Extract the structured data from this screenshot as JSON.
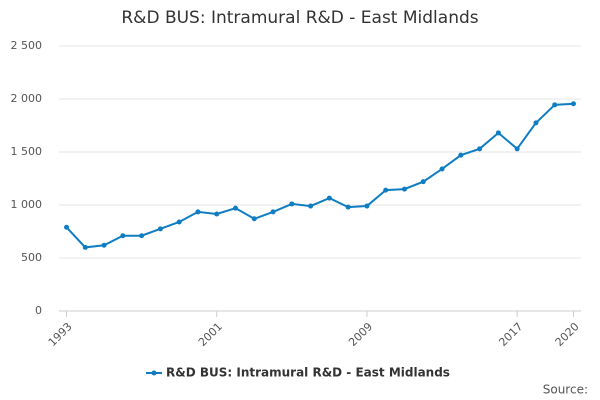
{
  "chart_data": {
    "type": "line",
    "title": "R&D BUS: Intramural R&D - East Midlands",
    "x": [
      1993,
      1994,
      1995,
      1996,
      1997,
      1998,
      1999,
      2000,
      2001,
      2002,
      2003,
      2004,
      2005,
      2006,
      2007,
      2008,
      2009,
      2010,
      2011,
      2012,
      2013,
      2014,
      2015,
      2016,
      2017,
      2018,
      2019,
      2020
    ],
    "series": [
      {
        "name": "R&D BUS: Intramural R&D - East Midlands",
        "color": "#0f7dc2",
        "values": [
          790,
          600,
          620,
          710,
          710,
          775,
          840,
          935,
          915,
          970,
          870,
          935,
          1010,
          990,
          1065,
          980,
          990,
          1140,
          1150,
          1220,
          1340,
          1470,
          1530,
          1680,
          1530,
          1775,
          1945,
          1955
        ]
      }
    ],
    "xlim": [
      1992.6,
      2020.4
    ],
    "xticks": [
      1993,
      2001,
      2009,
      2017,
      2020
    ],
    "ylim": [
      0,
      2500
    ],
    "yticks": [
      0,
      500,
      {
        "value": 1000,
        "label": "1 000"
      },
      {
        "value": 1500,
        "label": "1 500"
      },
      {
        "value": 2000,
        "label": "2 000"
      },
      {
        "value": 2500,
        "label": "2 500"
      }
    ],
    "grid": true,
    "source": "Source:"
  }
}
